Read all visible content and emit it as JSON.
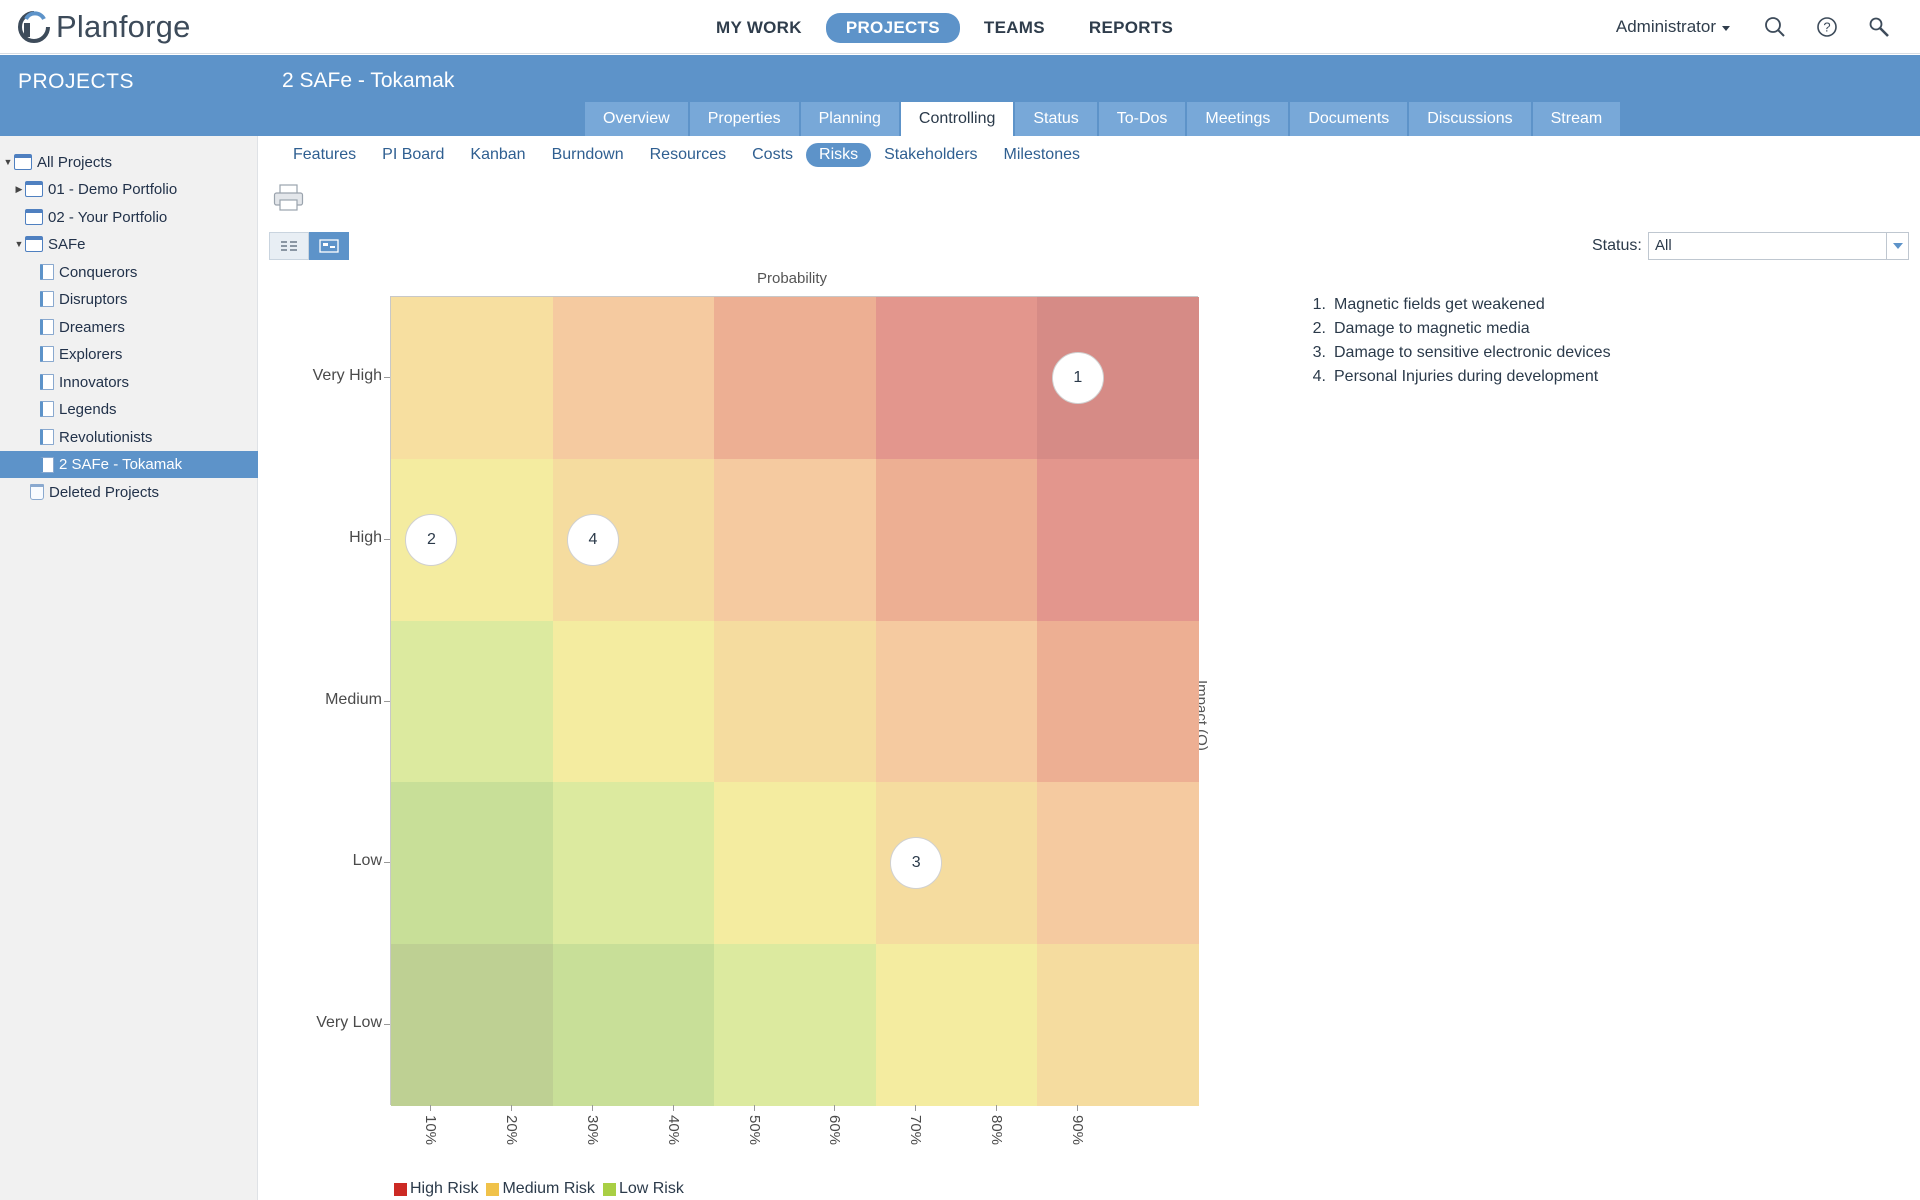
{
  "app": {
    "name": "Planforge"
  },
  "nav": {
    "items": [
      "MY WORK",
      "PROJECTS",
      "TEAMS",
      "REPORTS"
    ],
    "active": "PROJECTS"
  },
  "user": {
    "name": "Administrator"
  },
  "icons": {
    "search": "search-icon",
    "help": "help-icon",
    "tools": "wrench-icon",
    "print": "printer-icon"
  },
  "sidebar": {
    "header": "PROJECTS",
    "items": [
      {
        "label": "All Projects",
        "icon": "projects-folder-icon",
        "expanded": true
      },
      {
        "label": "01 - Demo Portfolio",
        "icon": "portfolio-icon",
        "expanded": false
      },
      {
        "label": "02 - Your Portfolio",
        "icon": "portfolio-icon"
      },
      {
        "label": "SAFe",
        "icon": "portfolio-icon",
        "expanded": true
      },
      {
        "label": "Conquerors",
        "icon": "team-project-icon"
      },
      {
        "label": "Disruptors",
        "icon": "team-project-icon"
      },
      {
        "label": "Dreamers",
        "icon": "team-project-icon"
      },
      {
        "label": "Explorers",
        "icon": "team-project-icon"
      },
      {
        "label": "Innovators",
        "icon": "team-project-icon"
      },
      {
        "label": "Legends",
        "icon": "team-project-icon"
      },
      {
        "label": "Revolutionists",
        "icon": "team-project-icon"
      },
      {
        "label": "2 SAFe - Tokamak",
        "icon": "team-project-icon",
        "selected": true
      },
      {
        "label": "Deleted Projects",
        "icon": "trash-icon"
      }
    ]
  },
  "project": {
    "title": "2 SAFe - Tokamak",
    "tabs": [
      "Overview",
      "Properties",
      "Planning",
      "Controlling",
      "Status",
      "To-Dos",
      "Meetings",
      "Documents",
      "Discussions",
      "Stream"
    ],
    "active_tab": "Controlling",
    "subtabs": [
      "Features",
      "PI Board",
      "Kanban",
      "Burndown",
      "Resources",
      "Costs",
      "Risks",
      "Stakeholders",
      "Milestones"
    ],
    "active_subtab": "Risks"
  },
  "filter": {
    "label": "Status:",
    "value": "All"
  },
  "view": {
    "modes": [
      "list-view-icon",
      "matrix-view-icon"
    ],
    "active": "matrix-view-icon"
  },
  "chart_data": {
    "type": "heatmap",
    "title": "",
    "xlabel": "Probability",
    "ylabel": "Impact (Q)",
    "x_ticks": [
      "10%",
      "20%",
      "30%",
      "40%",
      "50%",
      "60%",
      "70%",
      "80%",
      "90%"
    ],
    "y_categories": [
      "Very High",
      "High",
      "Medium",
      "Low",
      "Very Low"
    ],
    "grid": {
      "columns": 5,
      "rows": 5
    },
    "cell_colors": [
      [
        "#f7dfa0",
        "#f5caa0",
        "#edaf93",
        "#e3968d",
        "#d68b86"
      ],
      [
        "#f4eca0",
        "#f5dc9f",
        "#f5caa0",
        "#edaf93",
        "#e3968d"
      ],
      [
        "#dcea9f",
        "#f4eca0",
        "#f5dc9f",
        "#f5caa0",
        "#edaf93"
      ],
      [
        "#c8df98",
        "#dcea9f",
        "#f4eca0",
        "#f5dc9f",
        "#f5caa0"
      ],
      [
        "#bed093",
        "#c8df98",
        "#dcea9f",
        "#f4eca0",
        "#f5dc9f"
      ]
    ],
    "points": [
      {
        "label": "1",
        "probability": 0.9,
        "impact": "Very High"
      },
      {
        "label": "2",
        "probability": 0.1,
        "impact": "High"
      },
      {
        "label": "4",
        "probability": 0.3,
        "impact": "High"
      },
      {
        "label": "3",
        "probability": 0.7,
        "impact": "Low"
      }
    ],
    "legend": [
      {
        "name": "High Risk",
        "color": "#cc2a24"
      },
      {
        "name": "Medium Risk",
        "color": "#f0c24a"
      },
      {
        "name": "Low Risk",
        "color": "#a9cf44"
      }
    ]
  },
  "risks": [
    {
      "num": "1.",
      "name": "Magnetic fields get weakened"
    },
    {
      "num": "2.",
      "name": "Damage to magnetic media"
    },
    {
      "num": "3.",
      "name": "Damage to sensitive electronic devices"
    },
    {
      "num": "4.",
      "name": "Personal Injuries during development"
    }
  ]
}
